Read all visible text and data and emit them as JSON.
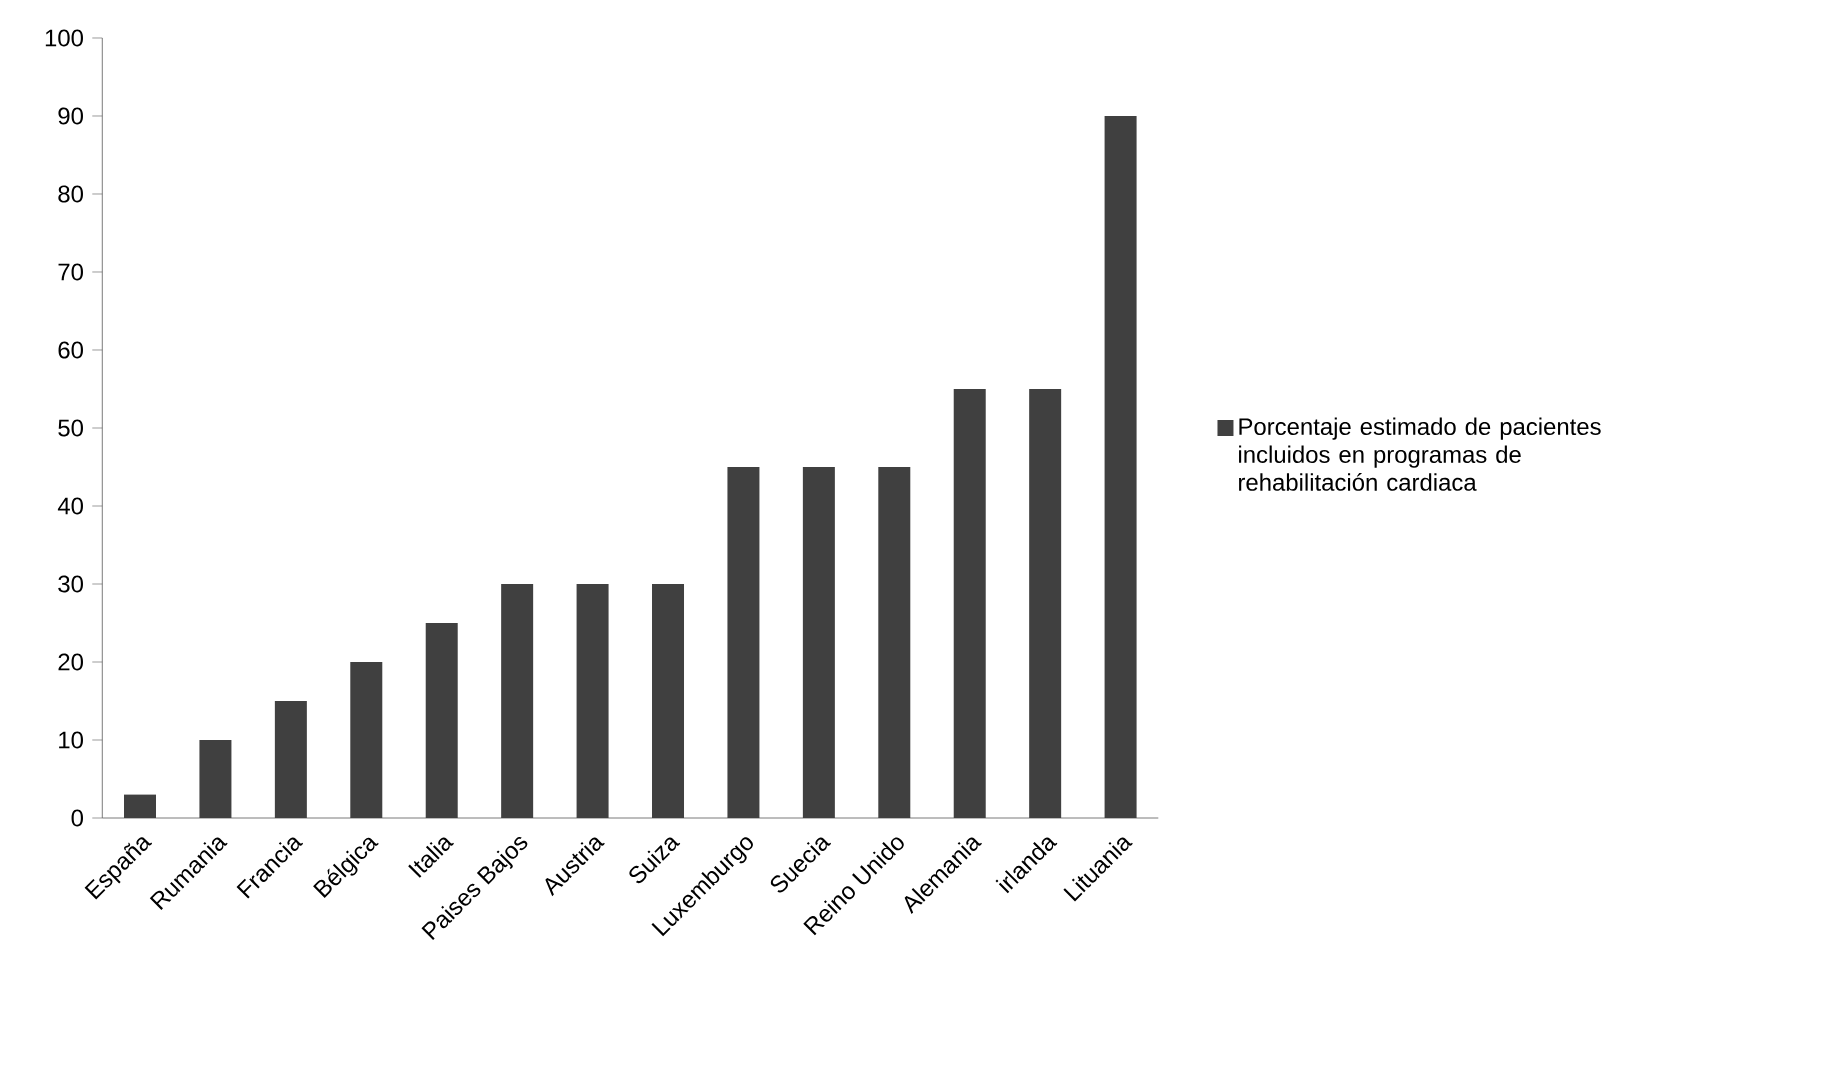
{
  "chart_data": {
    "type": "bar",
    "categories": [
      "España",
      "Rumania",
      "Francia",
      "Bélgica",
      "Italia",
      "Paises Bajos",
      "Austria",
      "Suiza",
      "Luxemburgo",
      "Suecia",
      "Reino Unido",
      "Alemania",
      "irlanda",
      "Lituania"
    ],
    "series": [
      {
        "name": "Porcentaje estimado de pacientes incluidos en programas de rehabilitación cardiaca",
        "color": "#404040",
        "values": [
          3,
          10,
          15,
          20,
          25,
          30,
          30,
          30,
          45,
          45,
          45,
          55,
          55,
          90
        ]
      }
    ],
    "ylim": [
      0,
      100
    ],
    "yticks": [
      0,
      10,
      20,
      30,
      40,
      50,
      60,
      70,
      80,
      90,
      100
    ],
    "grid": false,
    "legend": "right"
  }
}
